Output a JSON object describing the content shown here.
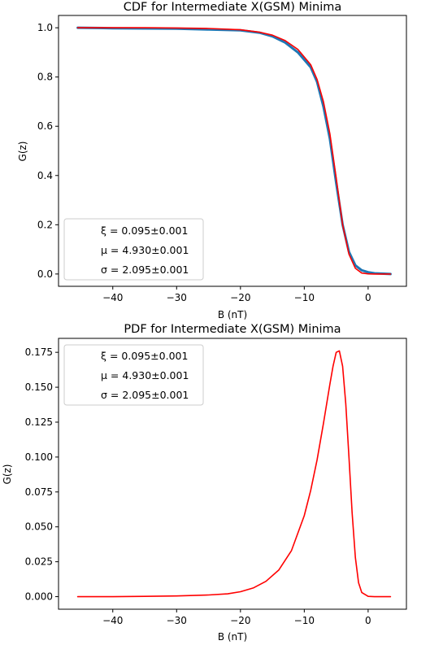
{
  "chart_data": [
    {
      "type": "line",
      "title": "CDF for Intermediate X(GSM) Minima",
      "xlabel": "B (nT)",
      "ylabel": "G(z)",
      "xlim": [
        -48.5,
        6
      ],
      "ylim": [
        -0.05,
        1.05
      ],
      "xticks": [
        -40,
        -30,
        -20,
        -10,
        0
      ],
      "yticks": [
        0.0,
        0.2,
        0.4,
        0.6,
        0.8,
        1.0
      ],
      "xtick_labels": [
        "−40",
        "−30",
        "−20",
        "−10",
        "0"
      ],
      "ytick_labels": [
        "0.0",
        "0.2",
        "0.4",
        "0.6",
        "0.8",
        "1.0"
      ],
      "legend": {
        "position": "lower-left",
        "entries": [
          "ξ = 0.095±0.001",
          "μ = 4.930±0.001",
          "σ = 2.095±0.001"
        ]
      },
      "series": [
        {
          "role": "empirical",
          "color": "#1f77b4",
          "x": [
            -45.5,
            -40,
            -35,
            -30,
            -25,
            -20,
            -17,
            -15,
            -13,
            -11,
            -9,
            -8,
            -7,
            -6,
            -5,
            -4,
            -3,
            -2,
            -1,
            0,
            1,
            3.5
          ],
          "y": [
            1.0,
            0.998,
            0.997,
            0.996,
            0.993,
            0.99,
            0.98,
            0.965,
            0.94,
            0.9,
            0.84,
            0.78,
            0.68,
            0.55,
            0.37,
            0.2,
            0.09,
            0.035,
            0.015,
            0.007,
            0.003,
            0.0
          ]
        },
        {
          "role": "fit",
          "color": "#ff0000",
          "x": [
            -45.5,
            -40,
            -35,
            -30,
            -25,
            -20,
            -17,
            -15,
            -13,
            -11,
            -9,
            -8,
            -7,
            -6,
            -5,
            -4,
            -3,
            -2,
            -1,
            0,
            1,
            3.5
          ],
          "y": [
            1.0,
            1.0,
            1.0,
            0.999,
            0.997,
            0.992,
            0.982,
            0.97,
            0.948,
            0.912,
            0.85,
            0.79,
            0.7,
            0.57,
            0.39,
            0.2,
            0.08,
            0.023,
            0.004,
            0.0005,
            0.0,
            0.0
          ]
        }
      ]
    },
    {
      "type": "line",
      "title": "PDF for Intermediate X(GSM) Minima",
      "xlabel": "B (nT)",
      "ylabel": "G(z)",
      "xlim": [
        -48.5,
        6
      ],
      "ylim": [
        -0.009,
        0.185
      ],
      "xticks": [
        -40,
        -30,
        -20,
        -10,
        0
      ],
      "yticks": [
        0.0,
        0.025,
        0.05,
        0.075,
        0.1,
        0.125,
        0.15,
        0.175
      ],
      "xtick_labels": [
        "−40",
        "−30",
        "−20",
        "−10",
        "0"
      ],
      "ytick_labels": [
        "0.000",
        "0.025",
        "0.050",
        "0.075",
        "0.100",
        "0.125",
        "0.150",
        "0.175"
      ],
      "legend": {
        "position": "top-left",
        "entries": [
          "ξ = 0.095±0.001",
          "μ = 4.930±0.001",
          "σ = 2.095±0.001"
        ]
      },
      "series": [
        {
          "role": "fit",
          "color": "#ff0000",
          "x": [
            -45.5,
            -40,
            -35,
            -30,
            -25,
            -22,
            -20,
            -18,
            -16,
            -14,
            -12,
            -10,
            -9,
            -8,
            -7,
            -6,
            -5.5,
            -5,
            -4.5,
            -4,
            -3.5,
            -3,
            -2.5,
            -2,
            -1.5,
            -1,
            0,
            1,
            3.5
          ],
          "y": [
            0.0,
            0.0,
            0.0002,
            0.0005,
            0.0012,
            0.002,
            0.0035,
            0.0062,
            0.011,
            0.019,
            0.033,
            0.058,
            0.076,
            0.098,
            0.124,
            0.152,
            0.165,
            0.175,
            0.176,
            0.165,
            0.138,
            0.1,
            0.06,
            0.028,
            0.01,
            0.003,
            0.0002,
            0.0,
            0.0
          ]
        }
      ]
    }
  ]
}
